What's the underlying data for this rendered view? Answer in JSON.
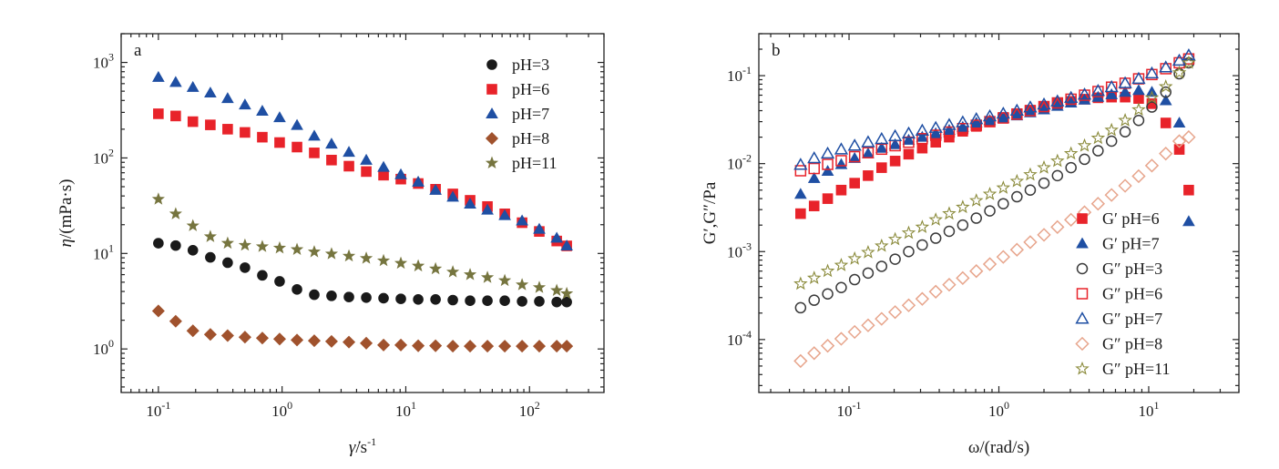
{
  "chart_data": [
    {
      "type": "scatter",
      "panel_letter": "a",
      "ylabel_symbol": "η",
      "ylabel_unit": "/(mPa·s)",
      "xlabel_symbol": "γ̇",
      "xlabel_unit": "/s",
      "xlabel_exp": "-1",
      "xscale": "log",
      "yscale": "log",
      "xlim": [
        0.05,
        400
      ],
      "ylim": [
        0.35,
        2000
      ],
      "x_major_ticks": [
        {
          "value": 0.1,
          "base": "10",
          "exp": "-1"
        },
        {
          "value": 1,
          "base": "10",
          "exp": "0"
        },
        {
          "value": 10,
          "base": "10",
          "exp": "1"
        },
        {
          "value": 100,
          "base": "10",
          "exp": "2"
        }
      ],
      "y_major_ticks": [
        {
          "value": 1,
          "base": "10",
          "exp": "0"
        },
        {
          "value": 10,
          "base": "10",
          "exp": "1"
        },
        {
          "value": 100,
          "base": "10",
          "exp": "2"
        },
        {
          "value": 1000,
          "base": "10",
          "exp": "3"
        }
      ],
      "legend_position": "top-right",
      "x": [
        0.1,
        0.138,
        0.19,
        0.263,
        0.363,
        0.501,
        0.692,
        0.955,
        1.32,
        1.82,
        2.51,
        3.47,
        4.79,
        6.61,
        9.12,
        12.6,
        17.4,
        24.0,
        33.1,
        45.7,
        63.1,
        87.1,
        120,
        166,
        200
      ],
      "series": [
        {
          "name": "pH=3",
          "marker": "circle",
          "filled": true,
          "color": "#1a1a1a",
          "values": [
            12.8,
            12.1,
            10.8,
            9.1,
            8.0,
            7.1,
            5.9,
            5.1,
            4.2,
            3.7,
            3.6,
            3.5,
            3.45,
            3.4,
            3.35,
            3.3,
            3.3,
            3.25,
            3.2,
            3.2,
            3.2,
            3.15,
            3.15,
            3.1,
            3.1
          ]
        },
        {
          "name": "pH=6",
          "marker": "square",
          "filled": true,
          "color": "#e8232a",
          "values": [
            290,
            275,
            240,
            222,
            200,
            185,
            165,
            145,
            130,
            113,
            95,
            82,
            72,
            66,
            60,
            54,
            47,
            42,
            36,
            31,
            26,
            21,
            17,
            13.5,
            12
          ]
        },
        {
          "name": "pH=7",
          "marker": "triangle",
          "filled": true,
          "color": "#1f4fa3",
          "values": [
            700,
            620,
            550,
            480,
            420,
            360,
            310,
            265,
            220,
            170,
            140,
            115,
            95,
            80,
            67,
            56,
            46,
            39,
            33,
            28.5,
            25,
            22,
            18,
            14.5,
            12
          ]
        },
        {
          "name": "pH=8",
          "marker": "diamond",
          "filled": true,
          "color": "#a0522d",
          "values": [
            2.5,
            1.95,
            1.55,
            1.42,
            1.38,
            1.33,
            1.3,
            1.27,
            1.24,
            1.22,
            1.2,
            1.18,
            1.15,
            1.1,
            1.1,
            1.08,
            1.08,
            1.07,
            1.07,
            1.07,
            1.07,
            1.07,
            1.07,
            1.07,
            1.07
          ]
        },
        {
          "name": "pH=11",
          "marker": "star",
          "filled": true,
          "color": "#76753f",
          "values": [
            37,
            26,
            19.5,
            15,
            12.8,
            12.2,
            11.8,
            11.4,
            11.0,
            10.4,
            9.9,
            9.4,
            8.9,
            8.4,
            7.9,
            7.4,
            6.9,
            6.4,
            6.0,
            5.6,
            5.2,
            4.7,
            4.4,
            4.1,
            3.8
          ]
        }
      ]
    },
    {
      "type": "scatter",
      "panel_letter": "b",
      "ylabel": "G′,G″/Pa",
      "xlabel": "ω/(rad/s)",
      "xscale": "log",
      "yscale": "log",
      "xlim": [
        0.025,
        40
      ],
      "ylim": [
        2.5e-05,
        0.3
      ],
      "x_major_ticks": [
        {
          "value": 0.1,
          "base": "10",
          "exp": "-1"
        },
        {
          "value": 1,
          "base": "10",
          "exp": "0"
        },
        {
          "value": 10,
          "base": "10",
          "exp": "1"
        }
      ],
      "y_major_ticks": [
        {
          "value": 0.0001,
          "base": "10",
          "exp": "-4"
        },
        {
          "value": 0.001,
          "base": "10",
          "exp": "-3"
        },
        {
          "value": 0.01,
          "base": "10",
          "exp": "-2"
        },
        {
          "value": 0.1,
          "base": "10",
          "exp": "-1"
        }
      ],
      "legend_position": "bottom-right",
      "x": [
        0.0475,
        0.0585,
        0.072,
        0.0887,
        0.109,
        0.134,
        0.165,
        0.203,
        0.25,
        0.308,
        0.379,
        0.466,
        0.574,
        0.707,
        0.87,
        1.07,
        1.32,
        1.62,
        2.0,
        2.46,
        3.03,
        3.73,
        4.59,
        5.65,
        6.96,
        8.57,
        10.5,
        13.0,
        16.0,
        18.5
      ],
      "series": [
        {
          "name": "G′ pH=6",
          "marker": "square",
          "filled": true,
          "color": "#e8232a",
          "values": [
            0.0027,
            0.0033,
            0.004,
            0.005,
            0.006,
            0.0073,
            0.009,
            0.0107,
            0.0128,
            0.015,
            0.0175,
            0.02,
            0.0233,
            0.0265,
            0.03,
            0.0335,
            0.037,
            0.0405,
            0.044,
            0.048,
            0.051,
            0.054,
            0.056,
            0.057,
            0.057,
            0.055,
            0.048,
            0.029,
            0.0145,
            0.005
          ]
        },
        {
          "name": "G′ pH=7",
          "marker": "triangle",
          "filled": true,
          "color": "#1f4fa3",
          "values": [
            0.0045,
            0.0068,
            0.0082,
            0.0098,
            0.0115,
            0.013,
            0.015,
            0.0165,
            0.0185,
            0.02,
            0.022,
            0.024,
            0.026,
            0.029,
            0.031,
            0.033,
            0.035,
            0.038,
            0.041,
            0.045,
            0.049,
            0.053,
            0.057,
            0.061,
            0.065,
            0.068,
            0.065,
            0.052,
            0.029,
            0.0022
          ]
        },
        {
          "name": "G″ pH=3",
          "marker": "circle",
          "filled": false,
          "color": "#3a3a3a",
          "values": [
            0.00023,
            0.00028,
            0.00033,
            0.00039,
            0.00048,
            0.00057,
            0.00068,
            0.00082,
            0.001,
            0.00119,
            0.00142,
            0.0017,
            0.002,
            0.0024,
            0.0029,
            0.0035,
            0.0042,
            0.005,
            0.006,
            0.0073,
            0.009,
            0.0112,
            0.014,
            0.018,
            0.023,
            0.031,
            0.044,
            0.065,
            0.105,
            0.14
          ]
        },
        {
          "name": "G″ pH=6",
          "marker": "square",
          "filled": false,
          "color": "#e8232a",
          "values": [
            0.0083,
            0.0088,
            0.0098,
            0.0108,
            0.012,
            0.0133,
            0.0146,
            0.016,
            0.0175,
            0.0192,
            0.021,
            0.0228,
            0.025,
            0.0273,
            0.03,
            0.033,
            0.0365,
            0.04,
            0.0445,
            0.049,
            0.054,
            0.06,
            0.066,
            0.074,
            0.082,
            0.092,
            0.103,
            0.12,
            0.14,
            0.155
          ]
        },
        {
          "name": "G″ pH=7",
          "marker": "triangle",
          "filled": false,
          "color": "#1f4fa3",
          "values": [
            0.0097,
            0.0115,
            0.013,
            0.0145,
            0.016,
            0.0175,
            0.019,
            0.0205,
            0.022,
            0.0237,
            0.0255,
            0.0275,
            0.0295,
            0.032,
            0.0345,
            0.037,
            0.04,
            0.0435,
            0.047,
            0.051,
            0.056,
            0.061,
            0.067,
            0.074,
            0.082,
            0.092,
            0.106,
            0.124,
            0.148,
            0.17
          ]
        },
        {
          "name": "G″ pH=8",
          "marker": "diamond",
          "filled": false,
          "color": "#e7a58c",
          "values": [
            5.7e-05,
            7e-05,
            8.5e-05,
            0.000102,
            0.000122,
            0.000145,
            0.000172,
            0.000205,
            0.000245,
            0.00029,
            0.00035,
            0.00042,
            0.0005,
            0.0006,
            0.00072,
            0.00087,
            0.00105,
            0.00128,
            0.00155,
            0.0019,
            0.0023,
            0.0028,
            0.0035,
            0.0044,
            0.0056,
            0.0072,
            0.0095,
            0.013,
            0.018,
            0.02
          ]
        },
        {
          "name": "G″ pH=11",
          "marker": "star",
          "filled": false,
          "color": "#8a8a3a",
          "values": [
            0.00043,
            0.0005,
            0.0006,
            0.0007,
            0.00083,
            0.00098,
            0.00116,
            0.00138,
            0.00163,
            0.0019,
            0.0023,
            0.0027,
            0.0032,
            0.0038,
            0.0045,
            0.0053,
            0.0063,
            0.0075,
            0.009,
            0.0107,
            0.013,
            0.016,
            0.0195,
            0.024,
            0.031,
            0.041,
            0.056,
            0.075,
            0.108,
            0.14
          ]
        }
      ]
    }
  ]
}
